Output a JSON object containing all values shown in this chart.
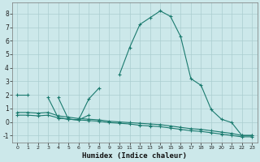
{
  "xlabel": "Humidex (Indice chaleur)",
  "x_values": [
    0,
    1,
    2,
    3,
    4,
    5,
    6,
    7,
    8,
    9,
    10,
    11,
    12,
    13,
    14,
    15,
    16,
    17,
    18,
    19,
    20,
    21,
    22,
    23
  ],
  "series": [
    [
      2.0,
      2.0,
      null,
      null,
      null,
      null,
      null,
      null,
      null,
      null,
      null,
      null,
      null,
      null,
      null,
      null,
      null,
      null,
      null,
      null,
      null,
      null,
      null,
      null
    ],
    [
      null,
      null,
      null,
      1.8,
      0.3,
      0.2,
      0.15,
      1.7,
      2.5,
      null,
      null,
      null,
      null,
      null,
      null,
      null,
      null,
      null,
      null,
      null,
      null,
      null,
      null,
      null
    ],
    [
      null,
      null,
      null,
      null,
      1.8,
      0.2,
      0.15,
      0.5,
      null,
      null,
      null,
      null,
      null,
      null,
      null,
      null,
      null,
      null,
      null,
      null,
      null,
      null,
      null,
      null
    ],
    [
      null,
      null,
      null,
      null,
      null,
      null,
      null,
      null,
      null,
      null,
      3.5,
      5.5,
      7.2,
      7.7,
      8.2,
      7.8,
      6.3,
      3.2,
      2.7,
      0.9,
      0.2,
      -0.05,
      -1.0,
      -1.0
    ],
    [
      0.7,
      0.7,
      0.65,
      0.7,
      0.45,
      0.35,
      0.25,
      0.2,
      0.15,
      0.05,
      0.0,
      -0.05,
      -0.1,
      -0.15,
      -0.2,
      -0.3,
      -0.4,
      -0.5,
      -0.55,
      -0.65,
      -0.75,
      -0.85,
      -1.0,
      -1.0
    ],
    [
      0.5,
      0.5,
      0.45,
      0.5,
      0.3,
      0.2,
      0.15,
      0.1,
      0.05,
      -0.05,
      -0.1,
      -0.15,
      -0.25,
      -0.3,
      -0.35,
      -0.45,
      -0.55,
      -0.65,
      -0.7,
      -0.8,
      -0.9,
      -1.0,
      -1.1,
      -1.1
    ]
  ],
  "line_color": "#1a7a6e",
  "bg_color": "#cce8ea",
  "grid_color": "#aacdd0",
  "ylim": [
    -1.5,
    8.8
  ],
  "xlim": [
    -0.5,
    23.5
  ],
  "yticks": [
    -1,
    0,
    1,
    2,
    3,
    4,
    5,
    6,
    7,
    8
  ],
  "xticks": [
    0,
    1,
    2,
    3,
    4,
    5,
    6,
    7,
    8,
    9,
    10,
    11,
    12,
    13,
    14,
    15,
    16,
    17,
    18,
    19,
    20,
    21,
    22,
    23
  ],
  "figsize": [
    3.2,
    2.0
  ],
  "dpi": 100
}
